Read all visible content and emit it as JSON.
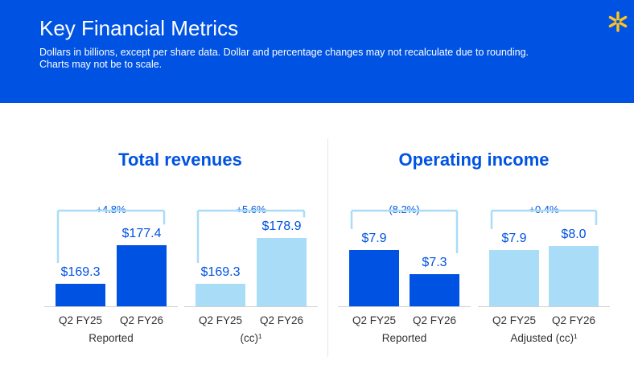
{
  "header": {
    "title": "Key Financial Metrics",
    "subtitle": "Dollars in billions, except per share data. Dollar and percentage changes may not recalculate due to rounding. Charts may not be to scale.",
    "logo_icon": "spark-icon"
  },
  "colors": {
    "header_bg": "#0053e2",
    "dark_bar": "#0053e2",
    "light_bar": "#a9ddf7",
    "text_blue": "#0053e2"
  },
  "chart_data": [
    {
      "type": "bar",
      "title": "Total revenues",
      "groups": [
        {
          "label": "Reported",
          "change": "+4.8%",
          "bars": [
            {
              "category": "Q2 FY25",
              "value": 169.3,
              "label": "$169.3",
              "shade": "dark"
            },
            {
              "category": "Q2 FY26",
              "value": 177.4,
              "label": "$177.4",
              "shade": "dark"
            }
          ]
        },
        {
          "label": "(cc)¹",
          "change": "+5.6%",
          "bars": [
            {
              "category": "Q2 FY25",
              "value": 169.3,
              "label": "$169.3",
              "shade": "light"
            },
            {
              "category": "Q2 FY26",
              "value": 178.9,
              "label": "$178.9",
              "shade": "light"
            }
          ]
        }
      ]
    },
    {
      "type": "bar",
      "title": "Operating income",
      "groups": [
        {
          "label": "Reported",
          "change": "(8.2%)",
          "bars": [
            {
              "category": "Q2 FY25",
              "value": 7.9,
              "label": "$7.9",
              "shade": "dark"
            },
            {
              "category": "Q2 FY26",
              "value": 7.3,
              "label": "$7.3",
              "shade": "dark"
            }
          ]
        },
        {
          "label": "Adjusted (cc)¹",
          "change": "+0.4%",
          "bars": [
            {
              "category": "Q2 FY25",
              "value": 7.9,
              "label": "$7.9",
              "shade": "light"
            },
            {
              "category": "Q2 FY26",
              "value": 8.0,
              "label": "$8.0",
              "shade": "light"
            }
          ]
        }
      ]
    }
  ]
}
